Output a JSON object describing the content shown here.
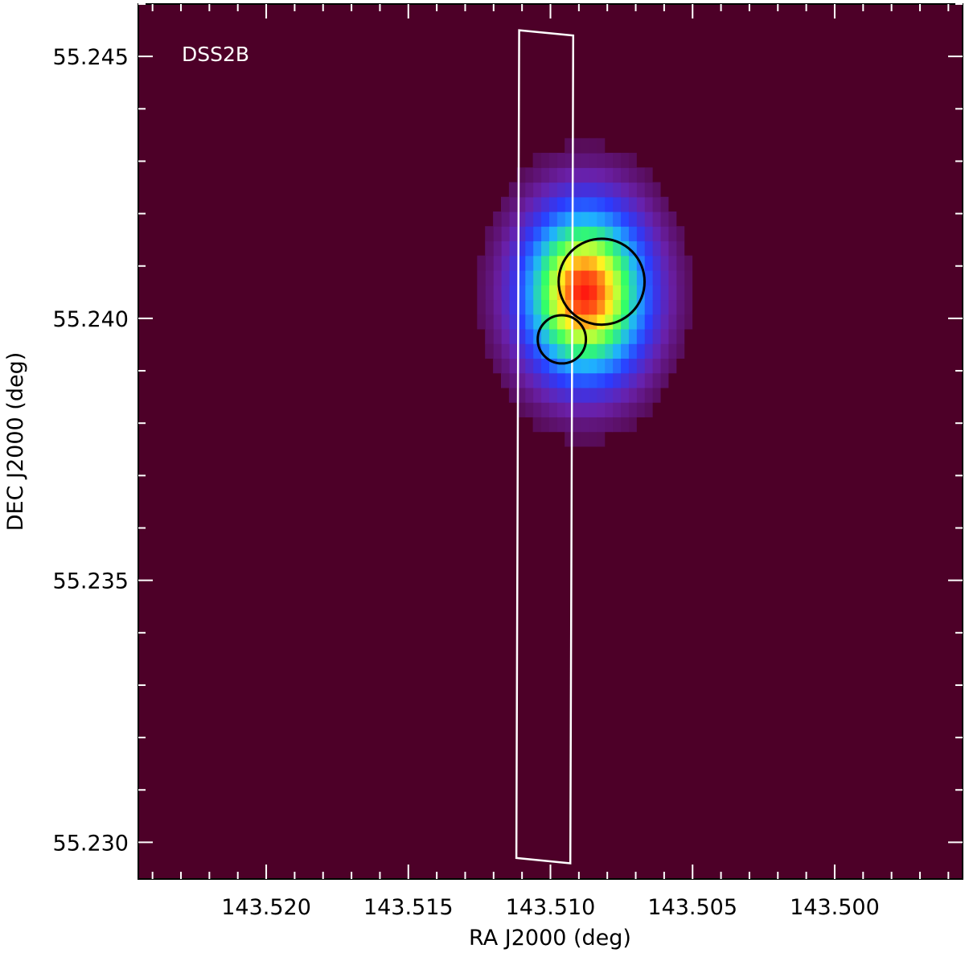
{
  "chart_data": {
    "type": "heatmap",
    "title": "",
    "panel_label": "DSS2B",
    "xlabel": "RA J2000 (deg)",
    "ylabel": "DEC J2000 (deg)",
    "xlim": [
      143.5245,
      143.4955
    ],
    "ylim": [
      55.2293,
      55.246
    ],
    "x_ticks": [
      {
        "value": 143.52,
        "label": "143.520"
      },
      {
        "value": 143.515,
        "label": "143.515"
      },
      {
        "value": 143.51,
        "label": "143.510"
      },
      {
        "value": 143.505,
        "label": "143.505"
      },
      {
        "value": 143.5,
        "label": "143.500"
      }
    ],
    "y_ticks": [
      {
        "value": 55.23,
        "label": "55.230"
      },
      {
        "value": 55.235,
        "label": "55.235"
      },
      {
        "value": 55.24,
        "label": "55.240"
      },
      {
        "value": 55.245,
        "label": "55.245"
      }
    ],
    "x_minor_step": 0.001,
    "y_minor_step": 0.001,
    "colormap": [
      "#4d0028",
      "#6a20a8",
      "#2a3cff",
      "#1fb0ff",
      "#33ff66",
      "#ffff22",
      "#ff1a10"
    ],
    "background_color": "#4d0028",
    "source": {
      "ra": 143.5088,
      "dec": 55.2405,
      "ra_sigma": 0.0016,
      "dec_sigma": 0.0012,
      "peak": 1.0
    },
    "slit": {
      "corners": [
        {
          "ra": 143.5111,
          "dec": 55.2455
        },
        {
          "ra": 143.5092,
          "dec": 55.2454
        },
        {
          "ra": 143.5093,
          "dec": 55.2296
        },
        {
          "ra": 143.5112,
          "dec": 55.2297
        }
      ],
      "color": "#ffffff"
    },
    "circles": [
      {
        "ra": 143.5082,
        "dec": 55.2407,
        "radius_deg": 0.00082,
        "color": "#000000"
      },
      {
        "ra": 143.5096,
        "dec": 55.2396,
        "radius_deg": 0.00046,
        "color": "#000000"
      }
    ]
  }
}
